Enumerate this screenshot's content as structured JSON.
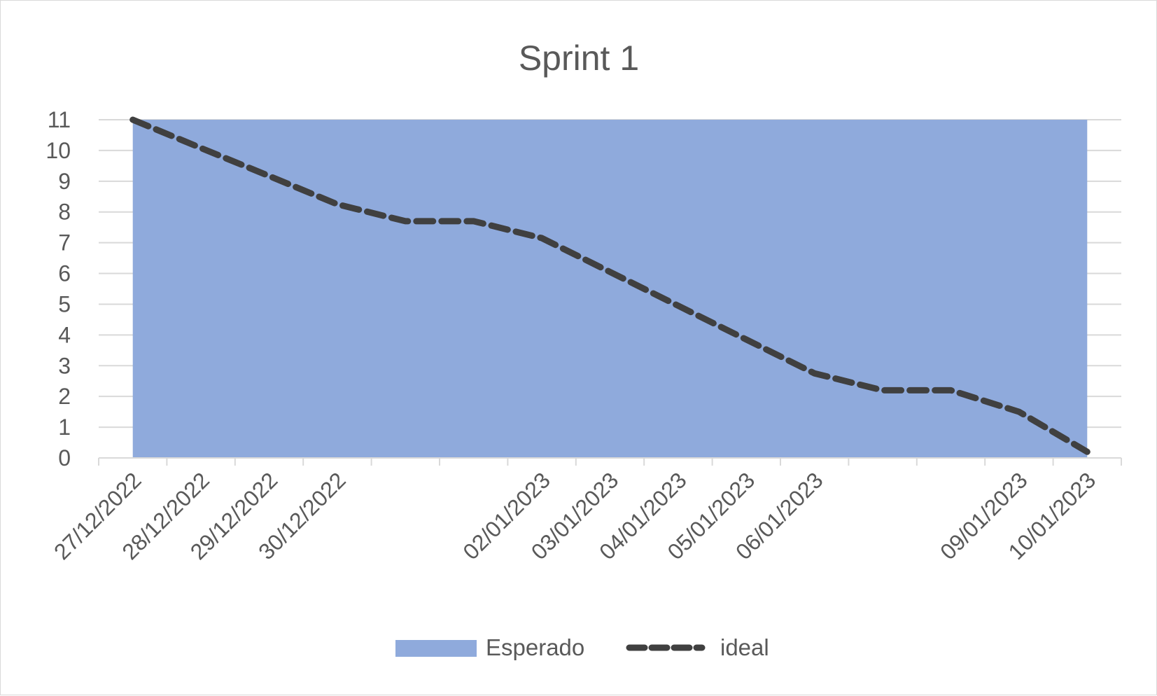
{
  "chart_data": {
    "type": "area",
    "title": "Sprint 1",
    "xlabel": "",
    "ylabel": "",
    "ylim": [
      0,
      11
    ],
    "yticks": [
      0,
      1,
      2,
      3,
      4,
      5,
      6,
      7,
      8,
      9,
      10,
      11
    ],
    "x": [
      "27/12/2022",
      "28/12/2022",
      "29/12/2022",
      "30/12/2022",
      "31/12/2022",
      "01/01/2023",
      "02/01/2023",
      "03/01/2023",
      "04/01/2023",
      "05/01/2023",
      "06/01/2023",
      "07/01/2023",
      "08/01/2023",
      "09/01/2023",
      "10/01/2023"
    ],
    "x_tick_labels": [
      "27/12/2022",
      "28/12/2022",
      "29/12/2022",
      "30/12/2022",
      "",
      "",
      "02/01/2023",
      "03/01/2023",
      "04/01/2023",
      "05/01/2023",
      "06/01/2023",
      "",
      "",
      "09/01/2023",
      "10/01/2023"
    ],
    "grid": true,
    "legend": "bottom",
    "series": [
      {
        "name": "Esperado",
        "kind": "area",
        "color": "#8faadc",
        "values": [
          11,
          11,
          11,
          11,
          11,
          11,
          11,
          11,
          11,
          11,
          11,
          11,
          11,
          11,
          11
        ]
      },
      {
        "name": "ideal",
        "kind": "line",
        "style": "dashed",
        "color": "#404040",
        "values": [
          11,
          10.08,
          9.17,
          8.25,
          7.7,
          7.7,
          7.15,
          6.05,
          4.95,
          3.85,
          2.75,
          2.2,
          2.2,
          1.5,
          0.2
        ]
      }
    ]
  }
}
